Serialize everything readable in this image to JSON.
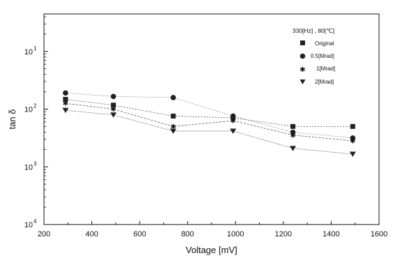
{
  "chart_data": {
    "type": "line",
    "title": "",
    "xlabel": "Voltage  [mV]",
    "ylabel": "tan  δ",
    "xlim": [
      200,
      1600
    ],
    "x_ticks": [
      200,
      400,
      600,
      800,
      1000,
      1200,
      1400,
      1600
    ],
    "y_scale": "log",
    "y_axis_note": "y-axis printed with descending exponents from top to bottom; values below are exponents as printed",
    "y_ticks": [
      {
        "label": "10",
        "exp": "1",
        "value_exp": 1
      },
      {
        "label": "10",
        "exp": "2",
        "value_exp": 2
      },
      {
        "label": "10",
        "exp": "3",
        "value_exp": 3
      },
      {
        "label": "10",
        "exp": "4",
        "value_exp": 4
      }
    ],
    "ylim_exp": [
      0.35,
      4
    ],
    "grid": false,
    "legend_title": "330[Hz] , 80[℃]",
    "legend_position": "top-right",
    "series": [
      {
        "name": "Original",
        "marker": "square",
        "x": [
          290,
          490,
          740,
          990,
          1240,
          1490
        ],
        "y_exp": [
          1.83,
          1.93,
          2.12,
          2.15,
          2.3,
          2.3
        ]
      },
      {
        "name": "0.5[Mrad]",
        "marker": "circle",
        "x": [
          290,
          490,
          740,
          990,
          1240,
          1490
        ],
        "y_exp": [
          1.72,
          1.78,
          1.8,
          2.12,
          2.4,
          2.5
        ]
      },
      {
        "name": "1[Mrad]",
        "marker": "star",
        "x": [
          290,
          490,
          740,
          990,
          1240,
          1490
        ],
        "y_exp": [
          1.9,
          2.0,
          2.3,
          2.2,
          2.45,
          2.55
        ]
      },
      {
        "name": "2[Mrad]",
        "marker": "triangle-down",
        "x": [
          290,
          490,
          740,
          990,
          1240,
          1490
        ],
        "y_exp": [
          2.02,
          2.1,
          2.38,
          2.38,
          2.68,
          2.78
        ]
      }
    ]
  }
}
